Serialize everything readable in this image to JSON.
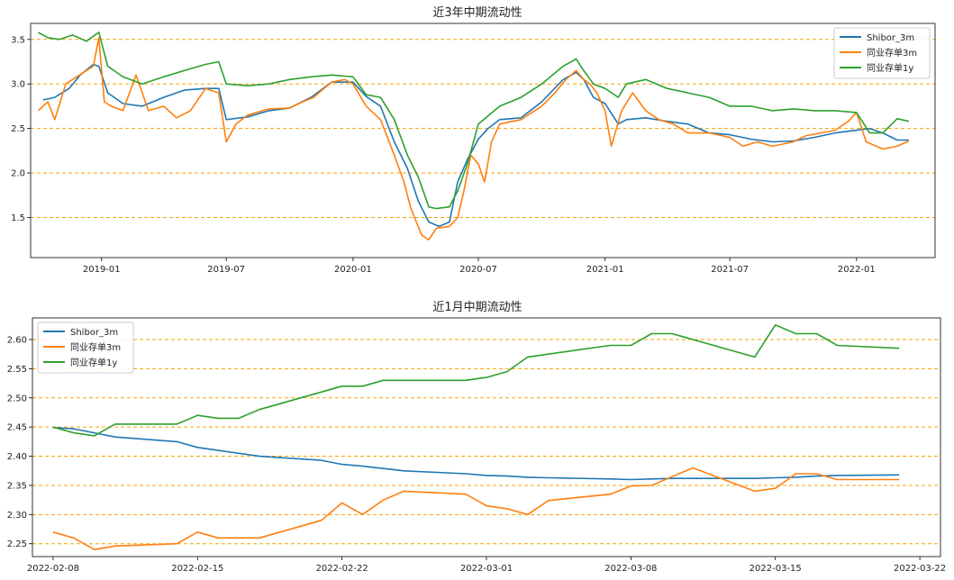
{
  "chart_data": [
    {
      "type": "line",
      "title": "近3年中期流动性",
      "xlabel": "",
      "ylabel": "",
      "x_ticks": [
        "2019-01",
        "2019-07",
        "2020-01",
        "2020-07",
        "2021-01",
        "2021-07",
        "2022-01"
      ],
      "y_ticks": [
        "1.5",
        "2.0",
        "2.5",
        "3.0",
        "3.5"
      ],
      "xlim": [
        "2018-09-20",
        "2022-04-25"
      ],
      "ylim": [
        1.05,
        3.68
      ],
      "grid": "horizontal dashed orange",
      "legend": "top-right",
      "series": [
        {
          "name": "Shibor_3m",
          "color": "#1f77b4",
          "x": [
            "2018-10-08",
            "2018-10-25",
            "2018-11-15",
            "2018-12-01",
            "2018-12-20",
            "2018-12-28",
            "2019-01-10",
            "2019-02-01",
            "2019-03-01",
            "2019-04-01",
            "2019-05-01",
            "2019-06-01",
            "2019-06-20",
            "2019-07-01",
            "2019-08-01",
            "2019-09-01",
            "2019-10-01",
            "2019-11-01",
            "2019-12-01",
            "2020-01-01",
            "2020-01-20",
            "2020-02-10",
            "2020-03-01",
            "2020-03-20",
            "2020-04-05",
            "2020-04-20",
            "2020-05-05",
            "2020-05-20",
            "2020-06-01",
            "2020-06-15",
            "2020-07-01",
            "2020-07-15",
            "2020-08-01",
            "2020-09-01",
            "2020-10-01",
            "2020-11-01",
            "2020-11-20",
            "2020-12-01",
            "2020-12-15",
            "2021-01-01",
            "2021-01-20",
            "2021-02-01",
            "2021-03-01",
            "2021-04-01",
            "2021-05-01",
            "2021-06-01",
            "2021-07-01",
            "2021-08-01",
            "2021-09-01",
            "2021-10-01",
            "2021-11-01",
            "2021-12-01",
            "2022-01-01",
            "2022-01-20",
            "2022-02-08",
            "2022-03-01",
            "2022-03-18"
          ],
          "values": [
            2.82,
            2.85,
            2.95,
            3.1,
            3.22,
            3.2,
            2.9,
            2.78,
            2.75,
            2.85,
            2.93,
            2.95,
            2.95,
            2.6,
            2.63,
            2.7,
            2.73,
            2.85,
            3.02,
            3.02,
            2.86,
            2.75,
            2.35,
            2.05,
            1.68,
            1.45,
            1.4,
            1.45,
            1.9,
            2.15,
            2.38,
            2.5,
            2.6,
            2.62,
            2.8,
            3.05,
            3.13,
            3.05,
            2.85,
            2.78,
            2.55,
            2.6,
            2.62,
            2.58,
            2.55,
            2.45,
            2.43,
            2.38,
            2.35,
            2.36,
            2.4,
            2.45,
            2.48,
            2.5,
            2.45,
            2.37,
            2.37
          ]
        },
        {
          "name": "同业存单3m",
          "color": "#ff7f0e",
          "x": [
            "2018-10-01",
            "2018-10-15",
            "2018-10-25",
            "2018-11-10",
            "2018-11-30",
            "2018-12-20",
            "2018-12-28",
            "2019-01-05",
            "2019-01-15",
            "2019-02-01",
            "2019-02-20",
            "2019-03-10",
            "2019-04-01",
            "2019-04-20",
            "2019-05-10",
            "2019-06-01",
            "2019-06-20",
            "2019-07-01",
            "2019-07-15",
            "2019-08-01",
            "2019-09-01",
            "2019-10-01",
            "2019-10-20",
            "2019-11-05",
            "2019-11-20",
            "2019-12-01",
            "2019-12-20",
            "2020-01-01",
            "2020-01-20",
            "2020-02-10",
            "2020-03-01",
            "2020-03-15",
            "2020-03-25",
            "2020-04-10",
            "2020-04-20",
            "2020-05-01",
            "2020-05-20",
            "2020-06-01",
            "2020-06-10",
            "2020-06-20",
            "2020-07-01",
            "2020-07-10",
            "2020-07-20",
            "2020-08-01",
            "2020-09-01",
            "2020-10-01",
            "2020-10-20",
            "2020-11-05",
            "2020-11-20",
            "2020-12-01",
            "2020-12-10",
            "2020-12-20",
            "2021-01-01",
            "2021-01-10",
            "2021-01-25",
            "2021-02-10",
            "2021-03-01",
            "2021-03-20",
            "2021-04-10",
            "2021-05-01",
            "2021-06-01",
            "2021-07-01",
            "2021-07-20",
            "2021-08-10",
            "2021-09-01",
            "2021-10-01",
            "2021-10-20",
            "2021-11-10",
            "2021-12-01",
            "2021-12-20",
            "2022-01-01",
            "2022-01-15",
            "2022-02-08",
            "2022-03-01",
            "2022-03-18"
          ],
          "values": [
            2.7,
            2.8,
            2.6,
            3.0,
            3.1,
            3.2,
            3.52,
            2.8,
            2.75,
            2.7,
            3.1,
            2.7,
            2.75,
            2.62,
            2.7,
            2.95,
            2.9,
            2.35,
            2.55,
            2.65,
            2.72,
            2.73,
            2.8,
            2.85,
            2.95,
            3.02,
            3.05,
            3.0,
            2.75,
            2.6,
            2.2,
            1.9,
            1.6,
            1.3,
            1.25,
            1.38,
            1.4,
            1.5,
            1.8,
            2.2,
            2.1,
            1.9,
            2.35,
            2.55,
            2.6,
            2.75,
            2.9,
            3.05,
            3.15,
            3.05,
            3.0,
            2.9,
            2.7,
            2.3,
            2.7,
            2.9,
            2.7,
            2.6,
            2.55,
            2.45,
            2.45,
            2.4,
            2.3,
            2.35,
            2.3,
            2.35,
            2.42,
            2.45,
            2.48,
            2.58,
            2.68,
            2.35,
            2.27,
            2.3,
            2.36
          ]
        },
        {
          "name": "同业存单1y",
          "color": "#2ca02c",
          "x": [
            "2018-10-01",
            "2018-10-15",
            "2018-11-01",
            "2018-11-20",
            "2018-12-10",
            "2018-12-28",
            "2019-01-10",
            "2019-02-01",
            "2019-03-01",
            "2019-04-01",
            "2019-05-01",
            "2019-06-01",
            "2019-06-20",
            "2019-07-01",
            "2019-08-01",
            "2019-09-01",
            "2019-10-01",
            "2019-11-01",
            "2019-12-01",
            "2020-01-01",
            "2020-01-20",
            "2020-02-10",
            "2020-03-01",
            "2020-03-20",
            "2020-04-05",
            "2020-04-20",
            "2020-05-01",
            "2020-05-20",
            "2020-06-01",
            "2020-06-15",
            "2020-07-01",
            "2020-08-01",
            "2020-09-01",
            "2020-10-01",
            "2020-11-01",
            "2020-11-20",
            "2020-12-01",
            "2020-12-15",
            "2021-01-01",
            "2021-01-20",
            "2021-02-01",
            "2021-03-01",
            "2021-04-01",
            "2021-05-01",
            "2021-06-01",
            "2021-07-01",
            "2021-08-01",
            "2021-09-01",
            "2021-10-01",
            "2021-11-01",
            "2021-12-01",
            "2022-01-01",
            "2022-01-20",
            "2022-02-08",
            "2022-03-01",
            "2022-03-18"
          ],
          "values": [
            3.58,
            3.52,
            3.5,
            3.55,
            3.48,
            3.58,
            3.2,
            3.08,
            3.0,
            3.08,
            3.15,
            3.22,
            3.25,
            3.0,
            2.98,
            3.0,
            3.05,
            3.08,
            3.1,
            3.08,
            2.88,
            2.85,
            2.6,
            2.2,
            1.95,
            1.62,
            1.6,
            1.62,
            1.8,
            2.1,
            2.55,
            2.75,
            2.85,
            3.0,
            3.2,
            3.28,
            3.15,
            3.0,
            2.95,
            2.85,
            3.0,
            3.05,
            2.95,
            2.9,
            2.85,
            2.75,
            2.75,
            2.7,
            2.72,
            2.7,
            2.7,
            2.68,
            2.45,
            2.45,
            2.61,
            2.58
          ]
        }
      ]
    },
    {
      "type": "line",
      "title": "近1月中期流动性",
      "xlabel": "",
      "ylabel": "",
      "x_ticks": [
        "2022-02-08",
        "2022-02-15",
        "2022-02-22",
        "2022-03-01",
        "2022-03-08",
        "2022-03-15",
        "2022-03-22"
      ],
      "y_ticks": [
        "2.25",
        "2.30",
        "2.35",
        "2.40",
        "2.45",
        "2.50",
        "2.55",
        "2.60"
      ],
      "xlim": [
        "2022-02-07",
        "2022-03-23"
      ],
      "ylim": [
        2.228,
        2.637
      ],
      "grid": "horizontal dashed orange",
      "legend": "top-left",
      "series": [
        {
          "name": "Shibor_3m",
          "color": "#1f77b4",
          "x": [
            "2022-02-08",
            "2022-02-09",
            "2022-02-10",
            "2022-02-11",
            "2022-02-14",
            "2022-02-15",
            "2022-02-16",
            "2022-02-17",
            "2022-02-18",
            "2022-02-21",
            "2022-02-22",
            "2022-02-23",
            "2022-02-24",
            "2022-02-25",
            "2022-02-28",
            "2022-03-01",
            "2022-03-02",
            "2022-03-03",
            "2022-03-04",
            "2022-03-07",
            "2022-03-08",
            "2022-03-09",
            "2022-03-10",
            "2022-03-11",
            "2022-03-14",
            "2022-03-15",
            "2022-03-16",
            "2022-03-17",
            "2022-03-18",
            "2022-03-21"
          ],
          "values": [
            2.449,
            2.447,
            2.44,
            2.433,
            2.425,
            2.415,
            2.41,
            2.405,
            2.4,
            2.393,
            2.386,
            2.383,
            2.379,
            2.375,
            2.37,
            2.367,
            2.366,
            2.364,
            2.363,
            2.361,
            2.36,
            2.361,
            2.362,
            2.362,
            2.362,
            2.363,
            2.364,
            2.366,
            2.367,
            2.368
          ]
        },
        {
          "name": "同业存单3m",
          "color": "#ff7f0e",
          "x": [
            "2022-02-08",
            "2022-02-09",
            "2022-02-10",
            "2022-02-11",
            "2022-02-14",
            "2022-02-15",
            "2022-02-16",
            "2022-02-17",
            "2022-02-18",
            "2022-02-21",
            "2022-02-22",
            "2022-02-23",
            "2022-02-24",
            "2022-02-25",
            "2022-02-28",
            "2022-03-01",
            "2022-03-02",
            "2022-03-03",
            "2022-03-04",
            "2022-03-07",
            "2022-03-08",
            "2022-03-09",
            "2022-03-10",
            "2022-03-11",
            "2022-03-14",
            "2022-03-15",
            "2022-03-16",
            "2022-03-17",
            "2022-03-18",
            "2022-03-21"
          ],
          "values": [
            2.27,
            2.26,
            2.24,
            2.246,
            2.25,
            2.27,
            2.26,
            2.26,
            2.26,
            2.29,
            2.32,
            2.3,
            2.325,
            2.34,
            2.335,
            2.315,
            2.31,
            2.3,
            2.324,
            2.335,
            2.349,
            2.35,
            2.365,
            2.38,
            2.34,
            2.345,
            2.37,
            2.37,
            2.36,
            2.36
          ]
        },
        {
          "name": "同业存单1y",
          "color": "#2ca02c",
          "x": [
            "2022-02-08",
            "2022-02-09",
            "2022-02-10",
            "2022-02-11",
            "2022-02-14",
            "2022-02-15",
            "2022-02-16",
            "2022-02-17",
            "2022-02-18",
            "2022-02-21",
            "2022-02-22",
            "2022-02-23",
            "2022-02-24",
            "2022-02-25",
            "2022-02-28",
            "2022-03-01",
            "2022-03-02",
            "2022-03-03",
            "2022-03-04",
            "2022-03-07",
            "2022-03-08",
            "2022-03-09",
            "2022-03-10",
            "2022-03-11",
            "2022-03-14",
            "2022-03-15",
            "2022-03-16",
            "2022-03-17",
            "2022-03-18",
            "2022-03-21"
          ],
          "values": [
            2.45,
            2.44,
            2.435,
            2.455,
            2.455,
            2.47,
            2.465,
            2.465,
            2.48,
            2.51,
            2.52,
            2.52,
            2.53,
            2.53,
            2.53,
            2.535,
            2.545,
            2.57,
            2.575,
            2.59,
            2.59,
            2.61,
            2.61,
            2.6,
            2.57,
            2.625,
            2.61,
            2.61,
            2.59,
            2.585
          ]
        }
      ]
    }
  ]
}
